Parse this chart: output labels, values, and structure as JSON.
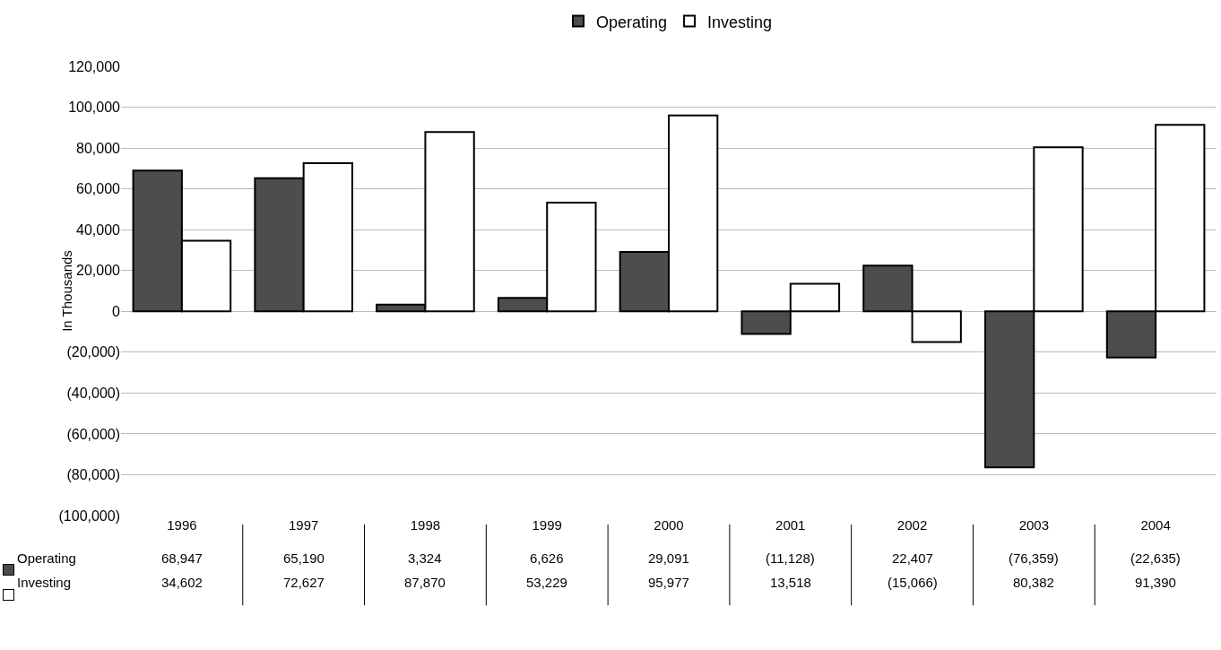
{
  "chart_data": {
    "type": "bar",
    "ylabel": "In Thousands",
    "categories": [
      "1996",
      "1997",
      "1998",
      "1999",
      "2000",
      "2001",
      "2002",
      "2003",
      "2004"
    ],
    "series": [
      {
        "name": "Operating",
        "color": "#4d4d4d",
        "values": [
          68947,
          65190,
          3324,
          6626,
          29091,
          -11128,
          22407,
          -76359,
          -22635
        ],
        "value_labels": [
          "68,947",
          "65,190",
          "3,324",
          "6,626",
          "29,091",
          "(11,128)",
          "22,407",
          "(76,359)",
          "(22,635)"
        ]
      },
      {
        "name": "Investing",
        "color": "#ffffff",
        "values": [
          34602,
          72627,
          87870,
          53229,
          95977,
          13518,
          -15066,
          80382,
          91390
        ],
        "value_labels": [
          "34,602",
          "72,627",
          "87,870",
          "53,229",
          "95,977",
          "13,518",
          "(15,066)",
          "80,382",
          "91,390"
        ]
      }
    ],
    "ylim": [
      -100000,
      120000
    ],
    "yticks": [
      {
        "value": 120000,
        "label": "120,000"
      },
      {
        "value": 100000,
        "label": "100,000"
      },
      {
        "value": 80000,
        "label": "80,000"
      },
      {
        "value": 60000,
        "label": "60,000"
      },
      {
        "value": 40000,
        "label": "40,000"
      },
      {
        "value": 20000,
        "label": "20,000"
      },
      0,
      {
        "value": -20000,
        "label": "(20,000)"
      },
      {
        "value": -40000,
        "label": "(40,000)"
      },
      {
        "value": -60000,
        "label": "(60,000)"
      },
      {
        "value": -80000,
        "label": "(80,000)"
      },
      {
        "value": -100000,
        "label": "(100,000)"
      }
    ],
    "grid": "y",
    "legend": "top"
  }
}
